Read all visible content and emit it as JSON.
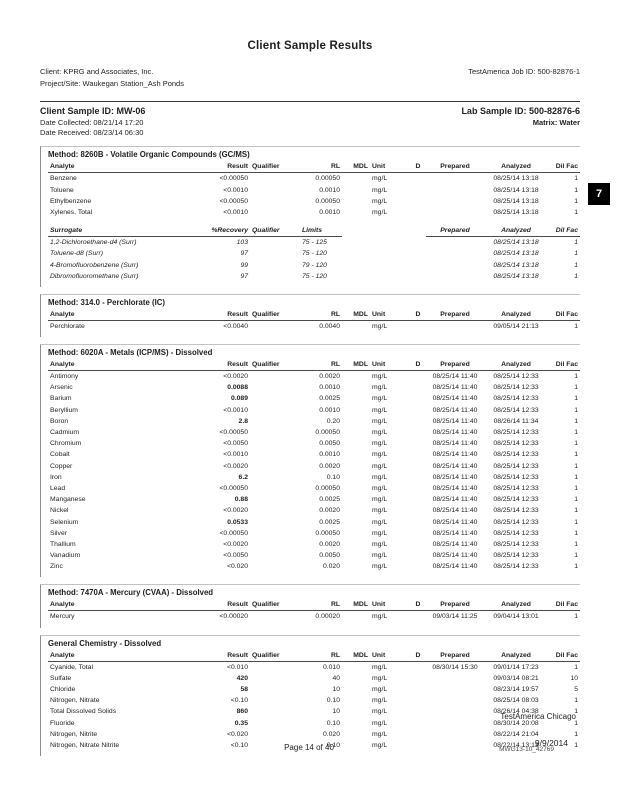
{
  "page": {
    "title": "Client Sample Results",
    "client_line": "Client: KPRG and Associates, Inc.",
    "project_line": "Project/Site: Waukegan Station_Ash Ponds",
    "job_id": "TestAmerica Job ID: 500-82876-1",
    "tab_number": "7"
  },
  "sample_header": {
    "client_sample_id": "Client Sample ID: MW-06",
    "lab_sample_id": "Lab Sample ID: 500-82876-6",
    "date_collected": "Date Collected: 08/21/14 17:20",
    "matrix": "Matrix: Water",
    "date_received": "Date Received: 08/23/14 06:30"
  },
  "footer": {
    "lab_name": "TestAmerica Chicago",
    "page_number": "Page 14 of 40",
    "date": "9/9/2014",
    "stamp": "MWG13-10_42769"
  },
  "analyte_columns": [
    "Analyte",
    "Result",
    "Qualifier",
    "RL",
    "MDL",
    "Unit",
    "D",
    "Prepared",
    "Analyzed",
    "Dil Fac"
  ],
  "surrogate_columns": [
    "Surrogate",
    "%Recovery",
    "Qualifier",
    "Limits",
    "",
    "",
    "",
    "Prepared",
    "Analyzed",
    "Dil Fac"
  ],
  "sections": [
    {
      "title": "Method: 8260B - Volatile Organic Compounds (GC/MS)",
      "tables": [
        {
          "type": "analyte",
          "rows": [
            {
              "analyte": "Benzene",
              "result": "<0.00050",
              "rl": "0.00050",
              "unit": "mg/L",
              "analyzed": "08/25/14 13:18",
              "dilfac": "1"
            },
            {
              "analyte": "Toluene",
              "result": "<0.0010",
              "rl": "0.0010",
              "unit": "mg/L",
              "analyzed": "08/25/14 13:18",
              "dilfac": "1"
            },
            {
              "analyte": "Ethylbenzene",
              "result": "<0.00050",
              "rl": "0.00050",
              "unit": "mg/L",
              "analyzed": "08/25/14 13:18",
              "dilfac": "1"
            },
            {
              "analyte": "Xylenes, Total",
              "result": "<0.0010",
              "rl": "0.0010",
              "unit": "mg/L",
              "analyzed": "08/25/14 13:18",
              "dilfac": "1"
            }
          ]
        },
        {
          "type": "surrogate",
          "rows": [
            {
              "analyte": "1,2-Dichloroethane-d4 (Surr)",
              "result": "103",
              "rl": "75 - 125",
              "analyzed": "08/25/14 13:18",
              "dilfac": "1"
            },
            {
              "analyte": "Toluene-d8 (Surr)",
              "result": "97",
              "rl": "75 - 120",
              "analyzed": "08/25/14 13:18",
              "dilfac": "1"
            },
            {
              "analyte": "4-Bromofluorobenzene (Surr)",
              "result": "99",
              "rl": "79 - 120",
              "analyzed": "08/25/14 13:18",
              "dilfac": "1"
            },
            {
              "analyte": "Dibromofluoromethane (Surr)",
              "result": "97",
              "rl": "75 - 120",
              "analyzed": "08/25/14 13:18",
              "dilfac": "1"
            }
          ]
        }
      ]
    },
    {
      "title": "Method: 314.0 - Perchlorate (IC)",
      "tables": [
        {
          "type": "analyte",
          "rows": [
            {
              "analyte": "Perchlorate",
              "result": "<0.0040",
              "rl": "0.0040",
              "unit": "mg/L",
              "analyzed": "09/05/14 21:13",
              "dilfac": "1"
            }
          ]
        }
      ]
    },
    {
      "title": "Method: 6020A - Metals (ICP/MS) - Dissolved",
      "tables": [
        {
          "type": "analyte",
          "rows": [
            {
              "analyte": "Antimony",
              "result": "<0.0020",
              "rl": "0.0020",
              "unit": "mg/L",
              "prepared": "08/25/14 11:40",
              "analyzed": "08/25/14 12:33",
              "dilfac": "1"
            },
            {
              "analyte": "Arsenic",
              "result": "0.0088",
              "bold": true,
              "rl": "0.0010",
              "unit": "mg/L",
              "prepared": "08/25/14 11:40",
              "analyzed": "08/25/14 12:33",
              "dilfac": "1"
            },
            {
              "analyte": "Barium",
              "result": "0.089",
              "bold": true,
              "rl": "0.0025",
              "unit": "mg/L",
              "prepared": "08/25/14 11:40",
              "analyzed": "08/25/14 12:33",
              "dilfac": "1"
            },
            {
              "analyte": "Beryllium",
              "result": "<0.0010",
              "rl": "0.0010",
              "unit": "mg/L",
              "prepared": "08/25/14 11:40",
              "analyzed": "08/25/14 12:33",
              "dilfac": "1"
            },
            {
              "analyte": "Boron",
              "result": "2.8",
              "bold": true,
              "rl": "0.20",
              "unit": "mg/L",
              "prepared": "08/25/14 11:40",
              "analyzed": "08/26/14 11:34",
              "dilfac": "1"
            },
            {
              "analyte": "Cadmium",
              "result": "<0.00050",
              "rl": "0.00050",
              "unit": "mg/L",
              "prepared": "08/25/14 11:40",
              "analyzed": "08/25/14 12:33",
              "dilfac": "1"
            },
            {
              "analyte": "Chromium",
              "result": "<0.0050",
              "rl": "0.0050",
              "unit": "mg/L",
              "prepared": "08/25/14 11:40",
              "analyzed": "08/25/14 12:33",
              "dilfac": "1"
            },
            {
              "analyte": "Cobalt",
              "result": "<0.0010",
              "rl": "0.0010",
              "unit": "mg/L",
              "prepared": "08/25/14 11:40",
              "analyzed": "08/25/14 12:33",
              "dilfac": "1"
            },
            {
              "analyte": "Copper",
              "result": "<0.0020",
              "rl": "0.0020",
              "unit": "mg/L",
              "prepared": "08/25/14 11:40",
              "analyzed": "08/25/14 12:33",
              "dilfac": "1"
            },
            {
              "analyte": "Iron",
              "result": "6.2",
              "bold": true,
              "rl": "0.10",
              "unit": "mg/L",
              "prepared": "08/25/14 11:40",
              "analyzed": "08/25/14 12:33",
              "dilfac": "1"
            },
            {
              "analyte": "Lead",
              "result": "<0.00050",
              "rl": "0.00050",
              "unit": "mg/L",
              "prepared": "08/25/14 11:40",
              "analyzed": "08/25/14 12:33",
              "dilfac": "1"
            },
            {
              "analyte": "Manganese",
              "result": "0.88",
              "bold": true,
              "rl": "0.0025",
              "unit": "mg/L",
              "prepared": "08/25/14 11:40",
              "analyzed": "08/25/14 12:33",
              "dilfac": "1"
            },
            {
              "analyte": "Nickel",
              "result": "<0.0020",
              "rl": "0.0020",
              "unit": "mg/L",
              "prepared": "08/25/14 11:40",
              "analyzed": "08/25/14 12:33",
              "dilfac": "1"
            },
            {
              "analyte": "Selenium",
              "result": "0.0533",
              "bold": true,
              "rl": "0.0025",
              "unit": "mg/L",
              "prepared": "08/25/14 11:40",
              "analyzed": "08/25/14 12:33",
              "dilfac": "1"
            },
            {
              "analyte": "Silver",
              "result": "<0.00050",
              "rl": "0.00050",
              "unit": "mg/L",
              "prepared": "08/25/14 11:40",
              "analyzed": "08/25/14 12:33",
              "dilfac": "1"
            },
            {
              "analyte": "Thallium",
              "result": "<0.0020",
              "rl": "0.0020",
              "unit": "mg/L",
              "prepared": "08/25/14 11:40",
              "analyzed": "08/25/14 12:33",
              "dilfac": "1"
            },
            {
              "analyte": "Vanadium",
              "result": "<0.0050",
              "rl": "0.0050",
              "unit": "mg/L",
              "prepared": "08/25/14 11:40",
              "analyzed": "08/25/14 12:33",
              "dilfac": "1"
            },
            {
              "analyte": "Zinc",
              "result": "<0.020",
              "rl": "0.020",
              "unit": "mg/L",
              "prepared": "08/25/14 11:40",
              "analyzed": "08/25/14 12:33",
              "dilfac": "1"
            }
          ]
        }
      ]
    },
    {
      "title": "Method: 7470A - Mercury (CVAA) - Dissolved",
      "tables": [
        {
          "type": "analyte",
          "rows": [
            {
              "analyte": "Mercury",
              "result": "<0.00020",
              "rl": "0.00020",
              "unit": "mg/L",
              "prepared": "09/03/14 11:25",
              "analyzed": "09/04/14 13:01",
              "dilfac": "1"
            }
          ]
        }
      ]
    },
    {
      "title": "General Chemistry - Dissolved",
      "tables": [
        {
          "type": "analyte",
          "rows": [
            {
              "analyte": "Cyanide, Total",
              "result": "<0.010",
              "rl": "0.010",
              "unit": "mg/L",
              "prepared": "08/30/14 15:30",
              "analyzed": "09/01/14 17:23",
              "dilfac": "1"
            },
            {
              "analyte": "Sulfate",
              "result": "420",
              "bold": true,
              "rl": "40",
              "unit": "mg/L",
              "analyzed": "09/03/14 08:21",
              "dilfac": "10"
            },
            {
              "analyte": "Chloride",
              "result": "58",
              "bold": true,
              "rl": "10",
              "unit": "mg/L",
              "analyzed": "08/23/14 19:57",
              "dilfac": "5"
            },
            {
              "analyte": "Nitrogen, Nitrate",
              "result": "<0.10",
              "rl": "0.10",
              "unit": "mg/L",
              "analyzed": "08/25/14 08:03",
              "dilfac": "1"
            },
            {
              "analyte": "Total Dissolved Solids",
              "result": "860",
              "bold": true,
              "rl": "10",
              "unit": "mg/L",
              "analyzed": "08/26/14 04:38",
              "dilfac": "1"
            },
            {
              "analyte": "Fluoride",
              "result": "0.35",
              "bold": true,
              "rl": "0.10",
              "unit": "mg/L",
              "analyzed": "08/30/14 20:08",
              "dilfac": "1"
            },
            {
              "analyte": "Nitrogen, Nitrite",
              "result": "<0.020",
              "rl": "0.020",
              "unit": "mg/L",
              "analyzed": "08/22/14 21:04",
              "dilfac": "1"
            },
            {
              "analyte": "Nitrogen, Nitrate Nitrite",
              "result": "<0.10",
              "rl": "0.10",
              "unit": "mg/L",
              "analyzed": "08/22/14 13:13",
              "dilfac": "1"
            }
          ]
        }
      ]
    }
  ]
}
